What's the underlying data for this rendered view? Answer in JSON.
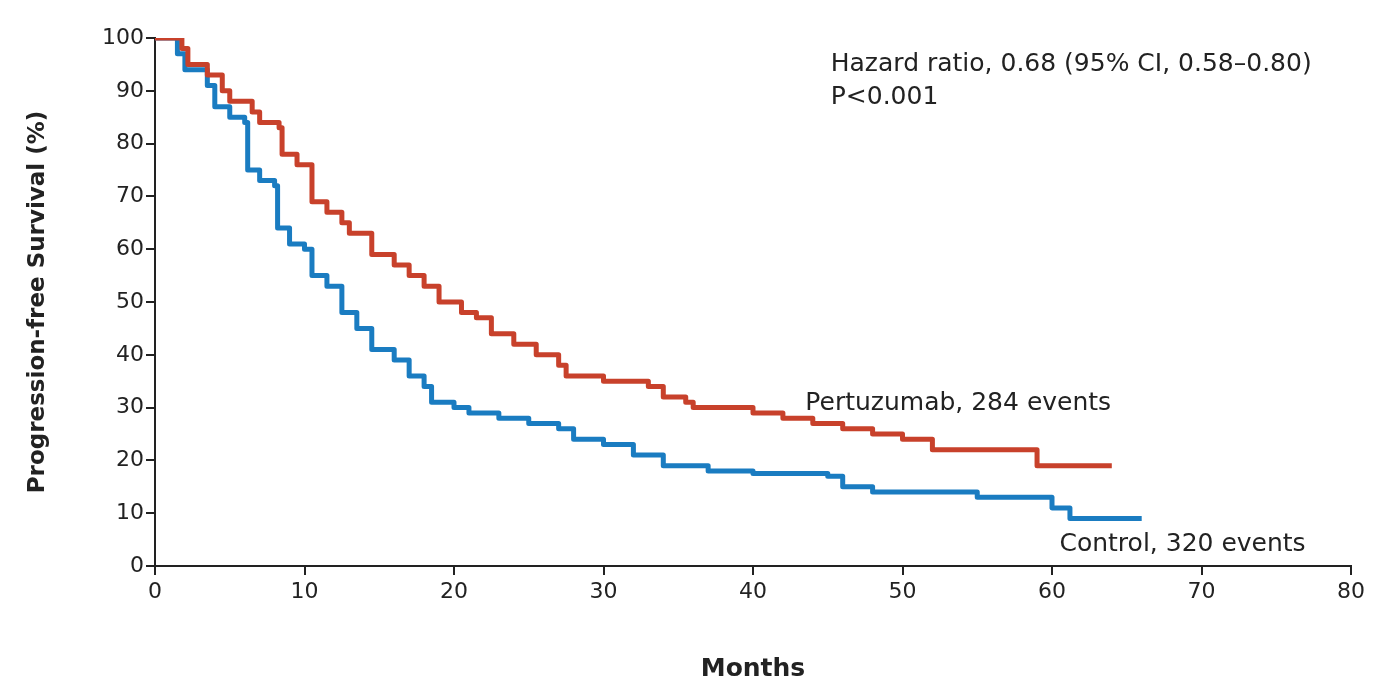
{
  "chart_data": {
    "type": "step",
    "xlabel": "Months",
    "ylabel": "Progression-free Survival (%)",
    "xlim": [
      0,
      80
    ],
    "xticks": [
      0,
      10,
      20,
      30,
      40,
      50,
      60,
      70,
      80
    ],
    "ylim": [
      0,
      100
    ],
    "yticks": [
      0,
      10,
      20,
      30,
      40,
      50,
      60,
      70,
      80,
      90,
      100
    ],
    "grid": false,
    "legend": false,
    "annotations": [
      "Hazard ratio, 0.68 (95% CI, 0.58–0.80)",
      "P<0.001"
    ],
    "series": [
      {
        "name": "Pertuzumab, 284 events",
        "color": "#c8412b",
        "x": [
          0,
          1.8,
          2.2,
          3.5,
          4.5,
          5,
          6.5,
          7,
          8.3,
          8.5,
          9.5,
          10.5,
          11.5,
          12.5,
          13,
          14.5,
          16,
          17,
          18,
          19,
          20.5,
          21.5,
          22.5,
          24,
          25.5,
          27,
          27.5,
          30,
          33,
          34,
          35.5,
          36,
          40,
          42,
          44,
          46,
          48,
          50,
          52,
          59,
          64
        ],
        "values": [
          100,
          98,
          95,
          93,
          90,
          88,
          86,
          84,
          83,
          78,
          76,
          69,
          67,
          65,
          63,
          59,
          57,
          55,
          53,
          50,
          48,
          47,
          44,
          42,
          40,
          38,
          36,
          35,
          34,
          32,
          31,
          30,
          29,
          28,
          27,
          26,
          25,
          24,
          22,
          19,
          19
        ]
      },
      {
        "name": "Control, 320 events",
        "color": "#1a7cc1",
        "x": [
          0,
          1.5,
          2,
          3.5,
          4,
          5,
          6,
          6.2,
          7,
          8,
          8.2,
          9,
          10,
          10.5,
          11.5,
          12.5,
          13.5,
          14.5,
          16,
          17,
          18,
          18.5,
          20,
          21,
          23,
          25,
          27,
          28,
          30,
          32,
          34,
          37,
          40,
          45,
          46,
          48,
          55,
          60,
          61.2,
          66
        ],
        "values": [
          100,
          97,
          94,
          91,
          87,
          85,
          84,
          75,
          73,
          72,
          64,
          61,
          60,
          55,
          53,
          48,
          45,
          41,
          39,
          36,
          34,
          31,
          30,
          29,
          28,
          27,
          26,
          24,
          23,
          21,
          19,
          18,
          17.5,
          17,
          15,
          14,
          13,
          11,
          9,
          9
        ]
      }
    ]
  }
}
